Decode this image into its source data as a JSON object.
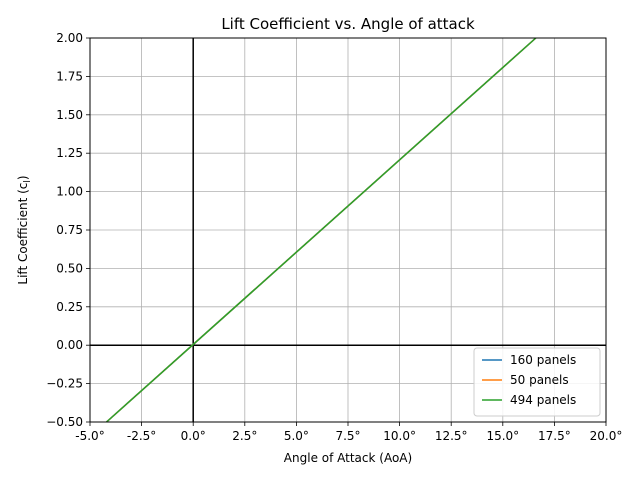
{
  "chart_data": {
    "type": "line",
    "title": "Lift Coefficient vs. Angle of attack",
    "xlabel": "Angle of Attack (AoA)",
    "ylabel_main": "Lift Coefficient (c",
    "ylabel_sub": "l",
    "ylabel_end": ")",
    "xlim": [
      -5,
      20
    ],
    "ylim": [
      -0.5,
      2.0
    ],
    "xticks": [
      -5,
      -2.5,
      0,
      2.5,
      5,
      7.5,
      10,
      12.5,
      15,
      17.5,
      20
    ],
    "xtick_labels": [
      "-5.0°",
      "-2.5°",
      "0.0°",
      "2.5°",
      "5.0°",
      "7.5°",
      "10.0°",
      "12.5°",
      "15.0°",
      "17.5°",
      "20.0°"
    ],
    "yticks": [
      -0.5,
      -0.25,
      0,
      0.25,
      0.5,
      0.75,
      1.0,
      1.25,
      1.5,
      1.75,
      2.0
    ],
    "ytick_labels": [
      "−0.50",
      "−0.25",
      "0.00",
      "0.25",
      "0.50",
      "0.75",
      "1.00",
      "1.25",
      "1.50",
      "1.75",
      "2.00"
    ],
    "grid": true,
    "legend_position": "lower-right",
    "series": [
      {
        "name": "160 panels",
        "color": "#1f77b4",
        "x": [
          -4.2,
          16.6
        ],
        "y": [
          -0.5,
          2.0
        ]
      },
      {
        "name": "50 panels",
        "color": "#ff7f0e",
        "x": [
          -4.2,
          16.6
        ],
        "y": [
          -0.5,
          2.0
        ]
      },
      {
        "name": "494 panels",
        "color": "#2ca02c",
        "x": [
          -4.2,
          16.6
        ],
        "y": [
          -0.5,
          2.0
        ]
      }
    ]
  }
}
